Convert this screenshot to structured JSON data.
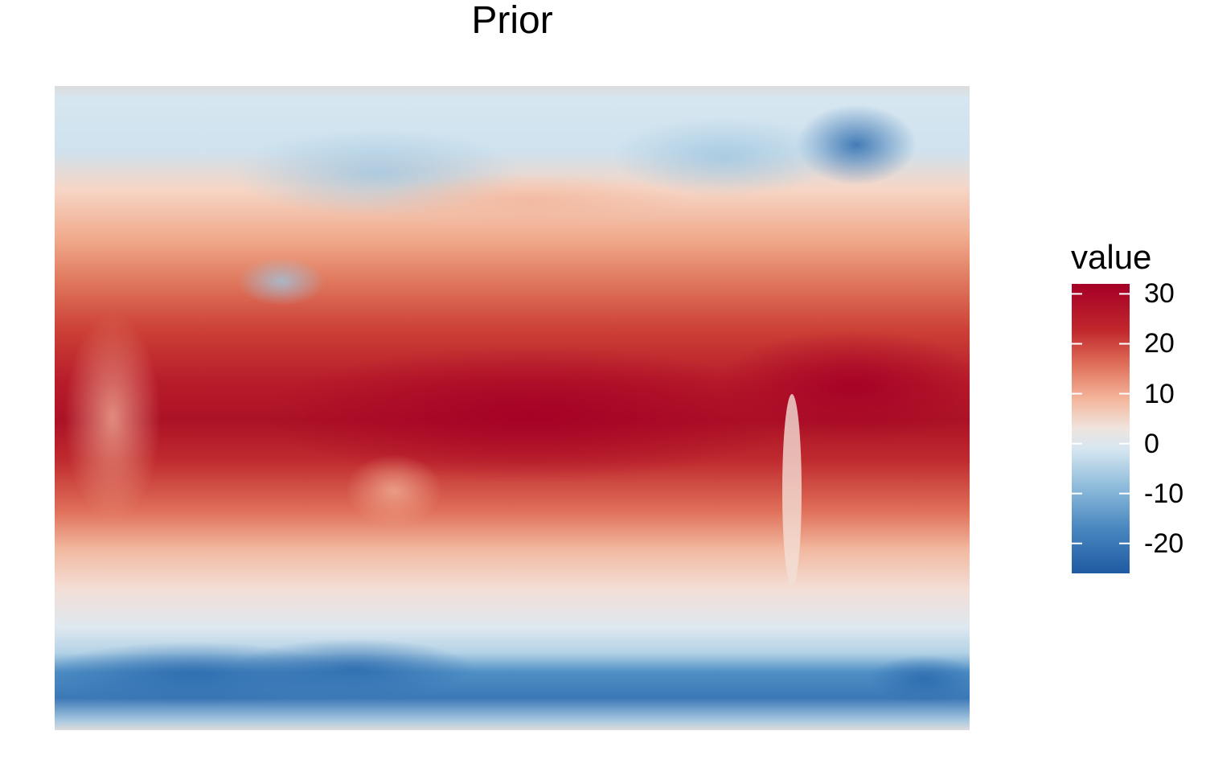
{
  "chart_data": {
    "type": "heatmap",
    "title": "Prior",
    "xlabel": "",
    "ylabel": "",
    "grid": false,
    "legend": {
      "title": "value",
      "placement": "right",
      "ticks": [
        30,
        20,
        10,
        0,
        -10,
        -20
      ],
      "tick_labels": [
        "30",
        "20",
        "10",
        "0",
        "-10",
        "-20"
      ],
      "range": [
        -26,
        32
      ],
      "colors": [
        "#2166ac",
        "#4393c3",
        "#92c5de",
        "#d1e5f0",
        "#f7f7f7",
        "#fddbc7",
        "#f4a582",
        "#d6604d",
        "#b2182b",
        "#a50026"
      ]
    },
    "field_description_values": {
      "equatorial_band_max": 32,
      "polar_south_min": -24,
      "polar_north_min": -15
    }
  }
}
